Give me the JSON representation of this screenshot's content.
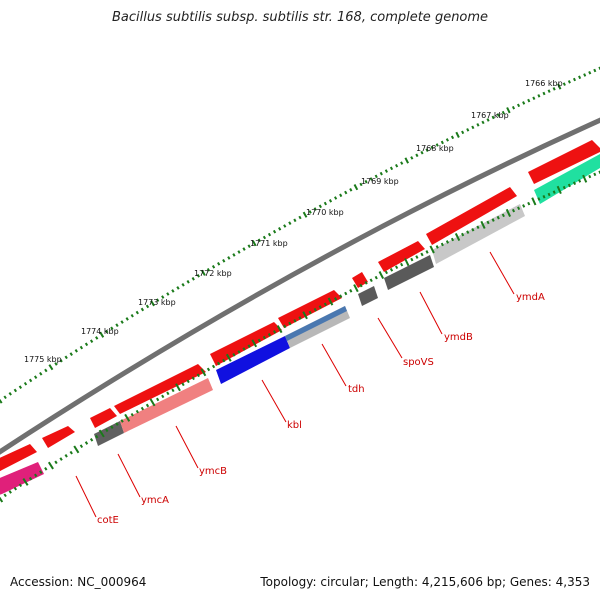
{
  "title": "Bacillus subtilis subsp. subtilis str. 168, complete genome",
  "accession": "Accession: NC_000964",
  "summary": "Topology: circular; Length: 4,215,606 bp; Genes: 4,353",
  "ruler_labels": [
    "1766 kbp",
    "1767 kbp",
    "1768 kbp",
    "1769 kbp",
    "1770 kbp",
    "1771 kbp",
    "1772 kbp",
    "1773 kbp",
    "1774 kbp",
    "1775 kbp"
  ],
  "genes": [
    {
      "name": "ymdA",
      "color": "#c8c8c8"
    },
    {
      "name": "ymdB",
      "color": "#5a5a5a"
    },
    {
      "name": "spoVS",
      "color": "#5a5a5a"
    },
    {
      "name": "tdh",
      "color": "#b8b8b8"
    },
    {
      "name": "kbl",
      "color": "#1010e0"
    },
    {
      "name": "ymcB",
      "color": "#f08080"
    },
    {
      "name": "ymcA",
      "color": "#606060"
    },
    {
      "name": "cotE",
      "color": "#e0207a"
    }
  ],
  "colors": {
    "forward_cds": "#ee1111",
    "ruler_tick": "#1a7a1a",
    "backbone": "#707070",
    "label_line": "#dd0000",
    "teal_feature": "#20e0a0",
    "steel_feature": "#4a78b0"
  }
}
